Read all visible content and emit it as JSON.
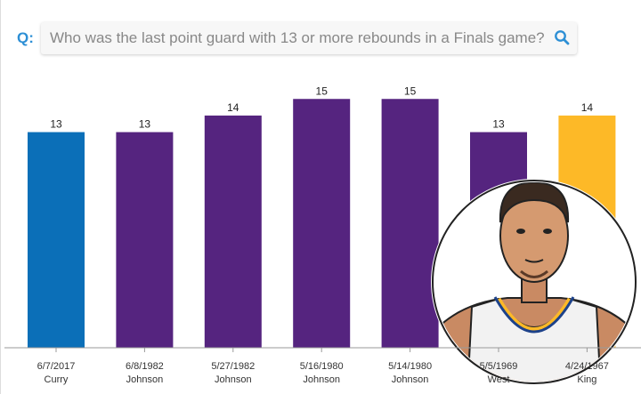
{
  "search": {
    "label": "Q:",
    "query": "Who was the last point guard with 13 or more rebounds in a Finals game?",
    "icon": "search-icon"
  },
  "chart_data": {
    "type": "bar",
    "categories": [
      [
        "6/7/2017",
        "Curry"
      ],
      [
        "6/8/1982",
        "Johnson"
      ],
      [
        "5/27/1982",
        "Johnson"
      ],
      [
        "5/16/1980",
        "Johnson"
      ],
      [
        "5/14/1980",
        "Johnson"
      ],
      [
        "5/5/1969",
        "West"
      ],
      [
        "4/24/1967",
        "King"
      ]
    ],
    "values": [
      13,
      13,
      14,
      15,
      15,
      13,
      14
    ],
    "colors": [
      "#0b6fb8",
      "#55247f",
      "#55247f",
      "#55247f",
      "#55247f",
      "#55247f",
      "#fdb927"
    ],
    "ylim": [
      0,
      15
    ],
    "grid": false
  },
  "portrait": {
    "subject": "player-headshot"
  }
}
